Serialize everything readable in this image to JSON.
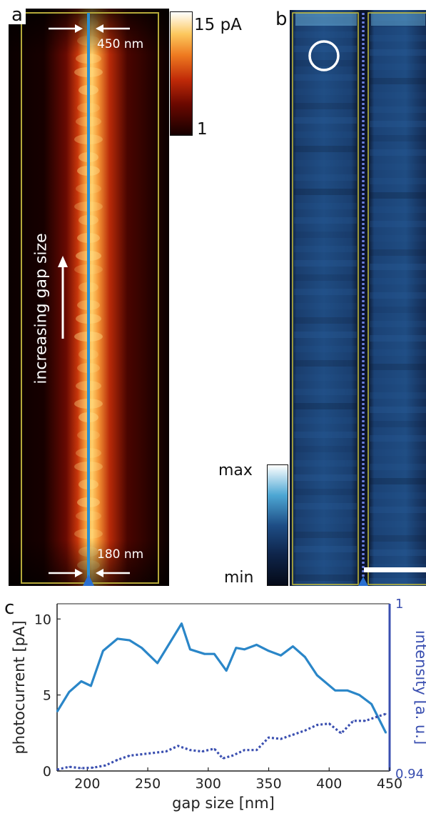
{
  "panel_a": {
    "letter": "a",
    "top_label": "450 nm",
    "bottom_label": "180 nm",
    "side_label": "increasing gap size",
    "colorbar": {
      "max_label": "15 pA",
      "min_label": "1"
    },
    "colors": {
      "heat_low": "#120000",
      "heat_mid": "#c2220a",
      "heat_high": "#ffd060",
      "frame": "#b5a93a",
      "gap_line": "#2a8fd0"
    }
  },
  "panel_b": {
    "letter": "b",
    "colorbar": {
      "max_label": "max",
      "min_label": "min"
    },
    "colors": {
      "dark": "#0b1630",
      "mid": "#1f4f86",
      "light": "#5fb7e0",
      "frame": "#c8c03a",
      "marker": "#ffffff"
    }
  },
  "chart_data": {
    "type": "line",
    "panel_letter": "c",
    "xlabel": "gap size [nm]",
    "ylabel_left": "photocurrent [pA]",
    "ylabel_right": "intensity [a. u.]",
    "xlim": [
      175,
      450
    ],
    "ylim_left": [
      0,
      11
    ],
    "ylim_right": [
      0.94,
      1
    ],
    "x_ticks": [
      200,
      250,
      300,
      350,
      400,
      450
    ],
    "y_ticks_left": [
      0,
      5,
      10
    ],
    "y_ticks_right": [
      0.94,
      1
    ],
    "y_tick_labels_right": [
      "0.94",
      "1"
    ],
    "grid": false,
    "series": [
      {
        "axis": "left",
        "style": "solid",
        "color": "#2a86c8",
        "x": [
          175,
          185,
          195,
          203,
          213,
          225,
          235,
          245,
          258,
          278,
          285,
          297,
          305,
          315,
          323,
          330,
          340,
          350,
          360,
          370,
          380,
          390,
          405,
          415,
          425,
          435,
          447
        ],
        "y": [
          3.9,
          5.2,
          5.9,
          5.6,
          7.9,
          8.7,
          8.6,
          8.1,
          7.1,
          9.7,
          8.0,
          7.7,
          7.7,
          6.6,
          8.1,
          8.0,
          8.3,
          7.9,
          7.6,
          8.2,
          7.5,
          6.3,
          5.3,
          5.3,
          5.0,
          4.4,
          2.5
        ]
      },
      {
        "axis": "right",
        "style": "dotted",
        "color": "#3a4fb0",
        "x": [
          175,
          185,
          195,
          205,
          215,
          225,
          235,
          245,
          255,
          265,
          275,
          285,
          295,
          305,
          312,
          320,
          330,
          340,
          350,
          360,
          370,
          380,
          390,
          400,
          410,
          420,
          430,
          440,
          447
        ],
        "y": [
          0.9405,
          0.9415,
          0.941,
          0.9412,
          0.942,
          0.944,
          0.9455,
          0.946,
          0.9465,
          0.947,
          0.949,
          0.9475,
          0.947,
          0.948,
          0.9445,
          0.9455,
          0.9475,
          0.9475,
          0.952,
          0.9515,
          0.953,
          0.9545,
          0.9565,
          0.957,
          0.9535,
          0.958,
          0.958,
          0.9595,
          0.9605
        ]
      }
    ]
  }
}
